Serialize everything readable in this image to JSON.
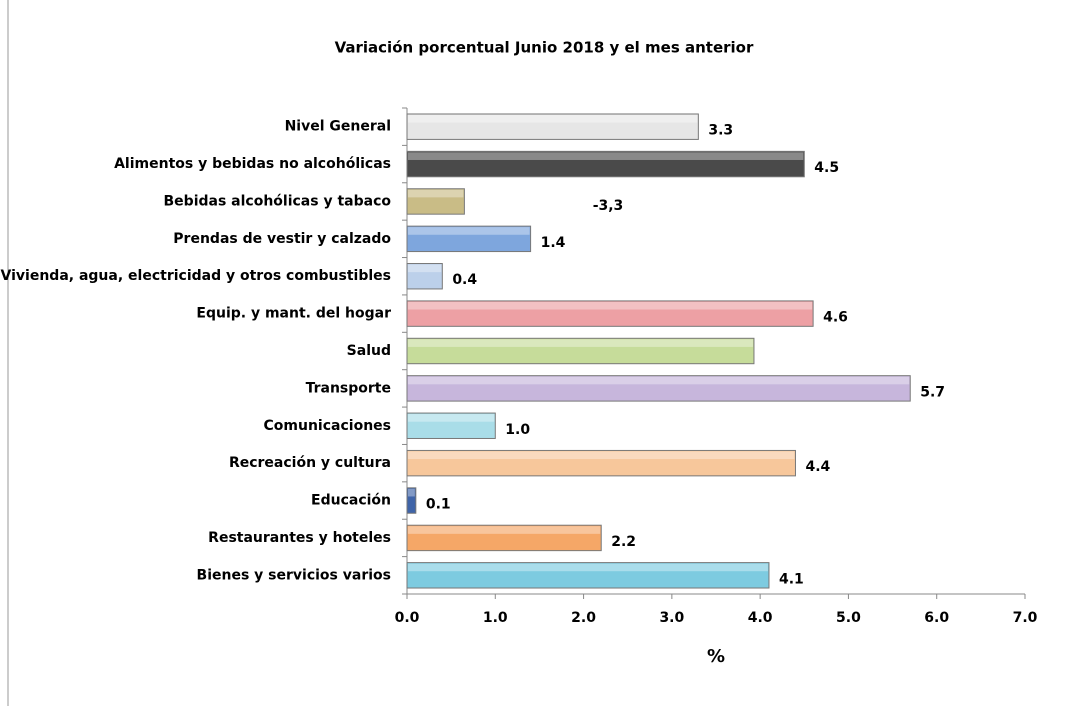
{
  "chart_data": {
    "type": "hbar",
    "title": "Variación porcentual  Junio 2018 y el mes anterior",
    "x_label": "%",
    "categories": [
      "Nivel General",
      "Alimentos y bebidas no alcohólicas",
      "Bebidas alcohólicas y tabaco",
      "Prendas de vestir y calzado",
      "Vivienda, agua, electricidad y otros combustibles",
      "Equip. y mant. del hogar",
      "Salud",
      "Transporte",
      "Comunicaciones",
      "Recreación y cultura",
      "Educación",
      "Restaurantes y hoteles",
      "Bienes y servicios varios"
    ],
    "values": [
      3.3,
      4.5,
      0.65,
      1.4,
      0.4,
      4.6,
      3.93,
      5.7,
      1.0,
      4.4,
      0.1,
      2.2,
      4.1
    ],
    "value_labels": [
      "3.3",
      "4.5",
      null,
      "1.4",
      "0.4",
      "4.6",
      null,
      "5.7",
      "1.0",
      "4.4",
      "0.1",
      "2.2",
      "4.1"
    ],
    "annotation": "-3,3",
    "colors": [
      "#e6e6e6",
      "#4a4a4a",
      "#c9bc86",
      "#7ea6dd",
      "#bcd0ea",
      "#eda0a4",
      "#c6dc9a",
      "#c7b6dc",
      "#a9dde8",
      "#f7c79b",
      "#3f64a8",
      "#f5a767",
      "#7dcbe0"
    ],
    "xlim": [
      0,
      7
    ],
    "xticks": [
      {
        "value": 0,
        "label": "0.0"
      },
      {
        "value": 1,
        "label": "1.0"
      },
      {
        "value": 2,
        "label": "2.0"
      },
      {
        "value": 3,
        "label": "3.0"
      },
      {
        "value": 4,
        "label": "4.0"
      },
      {
        "value": 5,
        "label": "5.0"
      },
      {
        "value": 6,
        "label": "6.0"
      },
      {
        "value": 7,
        "label": "7.0"
      }
    ]
  }
}
